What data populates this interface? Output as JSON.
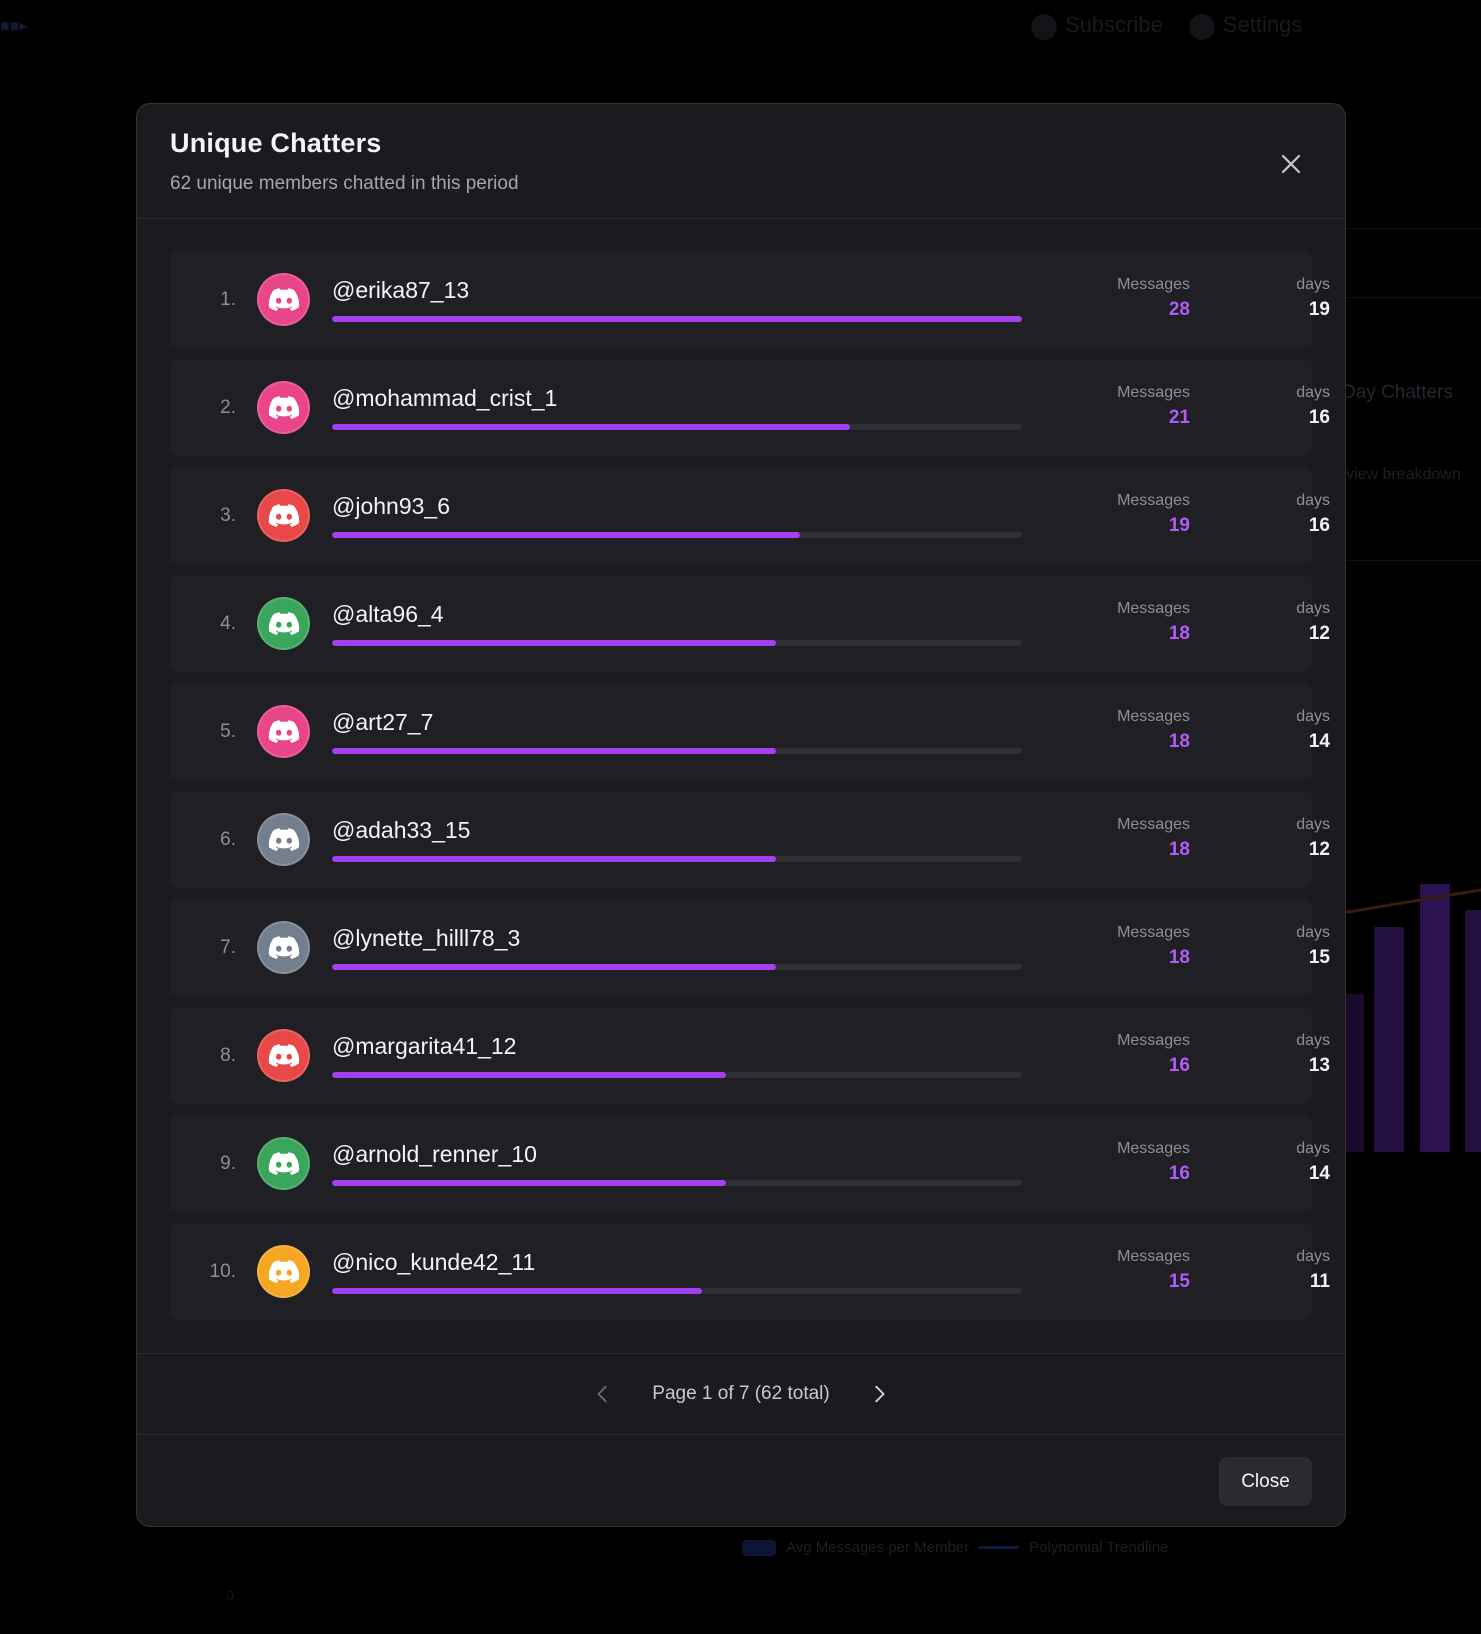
{
  "background": {
    "nav_items": [
      "Subscribe",
      "Settings"
    ],
    "card_label": "Day Chatters",
    "card_link": "view breakdown",
    "legend": [
      "Avg Messages per Member",
      "Polynomial Trendline"
    ]
  },
  "modal": {
    "title": "Unique Chatters",
    "subtitle": "62 unique members chatted in this period",
    "close_icon": "close-icon",
    "messages_label": "Messages",
    "days_label": "days",
    "max_messages": 28,
    "rows": [
      {
        "rank": "1.",
        "username": "@erika87_13",
        "messages": "28",
        "days": "19",
        "avatar_color": "#e8458b"
      },
      {
        "rank": "2.",
        "username": "@mohammad_crist_1",
        "messages": "21",
        "days": "16",
        "avatar_color": "#e8458b"
      },
      {
        "rank": "3.",
        "username": "@john93_6",
        "messages": "19",
        "days": "16",
        "avatar_color": "#e84848"
      },
      {
        "rank": "4.",
        "username": "@alta96_4",
        "messages": "18",
        "days": "12",
        "avatar_color": "#3ba55c"
      },
      {
        "rank": "5.",
        "username": "@art27_7",
        "messages": "18",
        "days": "14",
        "avatar_color": "#e8458b"
      },
      {
        "rank": "6.",
        "username": "@adah33_15",
        "messages": "18",
        "days": "12",
        "avatar_color": "#747f8d"
      },
      {
        "rank": "7.",
        "username": "@lynette_hilll78_3",
        "messages": "18",
        "days": "15",
        "avatar_color": "#747f8d"
      },
      {
        "rank": "8.",
        "username": "@margarita41_12",
        "messages": "16",
        "days": "13",
        "avatar_color": "#e84848"
      },
      {
        "rank": "9.",
        "username": "@arnold_renner_10",
        "messages": "16",
        "days": "14",
        "avatar_color": "#3ba55c"
      },
      {
        "rank": "10.",
        "username": "@nico_kunde42_11",
        "messages": "15",
        "days": "11",
        "avatar_color": "#f5a623"
      }
    ],
    "pagination": {
      "text": "Page 1 of 7 (62 total)",
      "prev_icon": "chevron-left-icon",
      "next_icon": "chevron-right-icon"
    },
    "close_button": "Close"
  },
  "colors": {
    "accent": "#a340f0",
    "modal_bg": "#1b1b1f",
    "row_bg": "#1f1f24"
  }
}
